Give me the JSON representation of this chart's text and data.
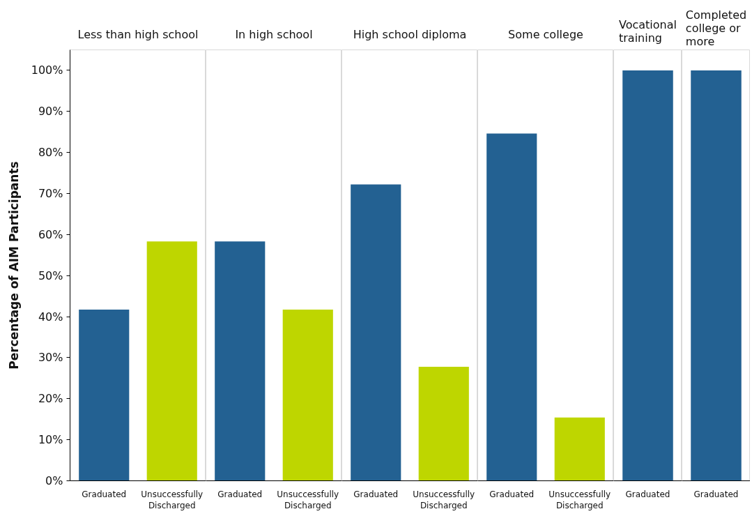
{
  "chart_data": [
    {
      "type": "bar",
      "title": "Less than high school",
      "ylabel": "Percentage of AIM Participants",
      "categories": [
        "Graduated",
        "Unsuccessfully Discharged"
      ],
      "values": [
        41.7,
        58.3
      ],
      "colors": [
        "#236192",
        "#bed600"
      ],
      "ylim": [
        0,
        105
      ],
      "yticks": [
        {
          "value": 0,
          "label": "0%"
        },
        {
          "value": 10,
          "label": "10%"
        },
        {
          "value": 20,
          "label": "20%"
        },
        {
          "value": 30,
          "label": "30%"
        },
        {
          "value": 40,
          "label": "40%"
        },
        {
          "value": 50,
          "label": "50%"
        },
        {
          "value": 60,
          "label": "60%"
        },
        {
          "value": 70,
          "label": "70%"
        },
        {
          "value": 80,
          "label": "80%"
        },
        {
          "value": 90,
          "label": "90%"
        },
        {
          "value": 100,
          "label": "100%"
        }
      ]
    },
    {
      "type": "bar",
      "title": "In high school",
      "categories": [
        "Graduated",
        "Unsuccessfully Discharged"
      ],
      "values": [
        58.3,
        41.7
      ],
      "colors": [
        "#236192",
        "#bed600"
      ],
      "ylim": [
        0,
        105
      ],
      "tick_labels": "x"
    },
    {
      "type": "bar",
      "title": "High school diploma",
      "categories": [
        "Graduated",
        "Unsuccessfully Discharged"
      ],
      "values": [
        72.2,
        27.8
      ],
      "colors": [
        "#236192",
        "#bed600"
      ],
      "ylim": [
        0,
        105
      ],
      "tick_labels": "x"
    },
    {
      "type": "bar",
      "title": "Some college",
      "categories": [
        "Graduated",
        "Unsuccessfully Discharged"
      ],
      "values": [
        84.6,
        15.4
      ],
      "colors": [
        "#236192",
        "#bed600"
      ],
      "ylim": [
        0,
        105
      ],
      "tick_labels": "x"
    },
    {
      "type": "bar",
      "title": "Vocational training",
      "categories": [
        "Graduated"
      ],
      "values": [
        100
      ],
      "colors": [
        "#236192"
      ],
      "ylim": [
        0,
        105
      ],
      "tick_labels": "x"
    },
    {
      "type": "bar",
      "title": "Completed college or more",
      "categories": [
        "Graduated"
      ],
      "values": [
        100
      ],
      "colors": [
        "#236192"
      ],
      "ylim": [
        0,
        105
      ],
      "tick_labels": "x"
    }
  ]
}
